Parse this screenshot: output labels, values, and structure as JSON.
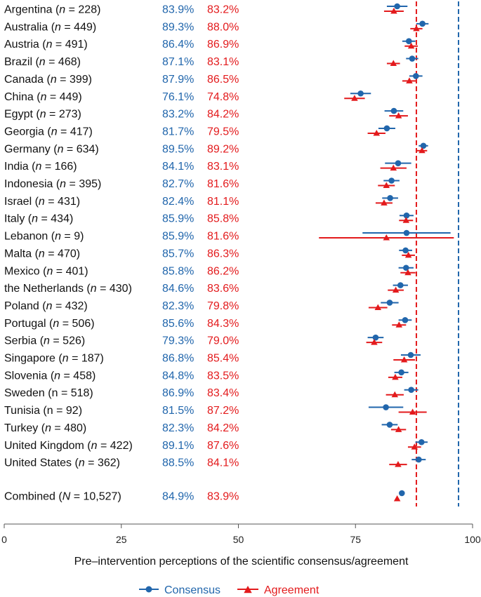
{
  "colors": {
    "consensus": "#2166ac",
    "agreement": "#e31a1c"
  },
  "chart_data": {
    "type": "forest",
    "title": "",
    "xlabel": "Pre–intervention perceptions of the scientific consensus/agreement",
    "xlim": [
      0,
      100
    ],
    "xticks": [
      0,
      25,
      50,
      75,
      100
    ],
    "reference_lines": [
      {
        "name": "Consensus",
        "value": 97,
        "style": "dashed"
      },
      {
        "name": "Agreement",
        "value": 88,
        "style": "dashed"
      }
    ],
    "legend": [
      {
        "name": "Consensus",
        "marker": "circle"
      },
      {
        "name": "Agreement",
        "marker": "triangle"
      }
    ],
    "rows": [
      {
        "country": "Argentina",
        "n_label": "n",
        "n": "228",
        "italic_n": true,
        "consensus_text": "83.9%",
        "agreement_text": "83.2%",
        "consensus": 83.9,
        "consensus_ci": [
          81.7,
          86.1
        ],
        "agreement": 83.2,
        "agreement_ci": [
          81.1,
          85.3
        ]
      },
      {
        "country": "Australia",
        "n_label": "n",
        "n": "449",
        "italic_n": true,
        "consensus_text": "89.3%",
        "agreement_text": "88.0%",
        "consensus": 89.3,
        "consensus_ci": [
          88.0,
          90.6
        ],
        "agreement": 88.0,
        "agreement_ci": [
          86.7,
          89.3
        ]
      },
      {
        "country": "Austria",
        "n_label": "n",
        "n": "491",
        "italic_n": true,
        "consensus_text": "86.4%",
        "agreement_text": "86.9%",
        "consensus": 86.4,
        "consensus_ci": [
          85.0,
          87.8
        ],
        "agreement": 86.9,
        "agreement_ci": [
          85.5,
          88.3
        ]
      },
      {
        "country": "Brazil",
        "n_label": "n",
        "n": "468",
        "italic_n": true,
        "consensus_text": "87.1%",
        "agreement_text": "83.1%",
        "consensus": 87.1,
        "consensus_ci": [
          85.8,
          88.4
        ],
        "agreement": 83.1,
        "agreement_ci": [
          81.7,
          84.5
        ]
      },
      {
        "country": "Canada",
        "n_label": "n",
        "n": "399",
        "italic_n": true,
        "consensus_text": "87.9%",
        "agreement_text": "86.5%",
        "consensus": 87.9,
        "consensus_ci": [
          86.5,
          89.3
        ],
        "agreement": 86.5,
        "agreement_ci": [
          85.0,
          88.0
        ]
      },
      {
        "country": "China",
        "n_label": "n",
        "n": "449",
        "italic_n": true,
        "consensus_text": "76.1%",
        "agreement_text": "74.8%",
        "consensus": 76.1,
        "consensus_ci": [
          73.9,
          78.3
        ],
        "agreement": 74.8,
        "agreement_ci": [
          72.6,
          77.0
        ]
      },
      {
        "country": "Egypt",
        "n_label": "n",
        "n": "273",
        "italic_n": true,
        "consensus_text": "83.2%",
        "agreement_text": "84.2%",
        "consensus": 83.2,
        "consensus_ci": [
          81.2,
          85.2
        ],
        "agreement": 84.2,
        "agreement_ci": [
          82.2,
          86.2
        ]
      },
      {
        "country": "Georgia",
        "n_label": "n",
        "n": "417",
        "italic_n": true,
        "consensus_text": "81.7%",
        "agreement_text": "79.5%",
        "consensus": 81.7,
        "consensus_ci": [
          79.9,
          83.5
        ],
        "agreement": 79.5,
        "agreement_ci": [
          77.6,
          81.4
        ]
      },
      {
        "country": "Germany",
        "n_label": "n",
        "n": "634",
        "italic_n": true,
        "consensus_text": "89.5%",
        "agreement_text": "89.2%",
        "consensus": 89.5,
        "consensus_ci": [
          88.5,
          90.5
        ],
        "agreement": 89.2,
        "agreement_ci": [
          88.1,
          90.3
        ]
      },
      {
        "country": "India",
        "n_label": "n",
        "n": "166",
        "italic_n": true,
        "consensus_text": "84.1%",
        "agreement_text": "83.1%",
        "consensus": 84.1,
        "consensus_ci": [
          81.3,
          86.9
        ],
        "agreement": 83.1,
        "agreement_ci": [
          80.3,
          85.9
        ]
      },
      {
        "country": "Indonesia",
        "n_label": "n",
        "n": "395",
        "italic_n": true,
        "consensus_text": "82.7%",
        "agreement_text": "81.6%",
        "consensus": 82.7,
        "consensus_ci": [
          81.0,
          84.4
        ],
        "agreement": 81.6,
        "agreement_ci": [
          79.8,
          83.4
        ]
      },
      {
        "country": "Israel",
        "n_label": "n",
        "n": "431",
        "italic_n": true,
        "consensus_text": "82.4%",
        "agreement_text": "81.1%",
        "consensus": 82.4,
        "consensus_ci": [
          80.7,
          84.1
        ],
        "agreement": 81.1,
        "agreement_ci": [
          79.3,
          82.9
        ]
      },
      {
        "country": "Italy",
        "n_label": "n",
        "n": "434",
        "italic_n": true,
        "consensus_text": "85.9%",
        "agreement_text": "85.8%",
        "consensus": 85.9,
        "consensus_ci": [
          84.4,
          87.4
        ],
        "agreement": 85.8,
        "agreement_ci": [
          84.3,
          87.3
        ]
      },
      {
        "country": "Lebanon",
        "n_label": "n",
        "n": "9",
        "italic_n": true,
        "consensus_text": "85.9%",
        "agreement_text": "81.6%",
        "consensus": 85.9,
        "consensus_ci": [
          76.5,
          95.3
        ],
        "agreement": 81.6,
        "agreement_ci": [
          67.2,
          96.0
        ]
      },
      {
        "country": "Malta",
        "n_label": "n",
        "n": "470",
        "italic_n": true,
        "consensus_text": "85.7%",
        "agreement_text": "86.3%",
        "consensus": 85.7,
        "consensus_ci": [
          84.3,
          87.1
        ],
        "agreement": 86.3,
        "agreement_ci": [
          84.9,
          87.7
        ]
      },
      {
        "country": "Mexico",
        "n_label": "n",
        "n": "401",
        "italic_n": true,
        "consensus_text": "85.8%",
        "agreement_text": "86.2%",
        "consensus": 85.8,
        "consensus_ci": [
          84.2,
          87.4
        ],
        "agreement": 86.2,
        "agreement_ci": [
          84.6,
          87.8
        ]
      },
      {
        "country": "the Netherlands",
        "n_label": "n",
        "n": "430",
        "italic_n": true,
        "consensus_text": "84.6%",
        "agreement_text": "83.6%",
        "consensus": 84.6,
        "consensus_ci": [
          83.0,
          86.2
        ],
        "agreement": 83.6,
        "agreement_ci": [
          81.9,
          85.3
        ]
      },
      {
        "country": "Poland",
        "n_label": "n",
        "n": "432",
        "italic_n": true,
        "consensus_text": "82.3%",
        "agreement_text": "79.8%",
        "consensus": 82.3,
        "consensus_ci": [
          80.4,
          84.2
        ],
        "agreement": 79.8,
        "agreement_ci": [
          77.8,
          81.8
        ]
      },
      {
        "country": "Portugal",
        "n_label": "n",
        "n": "506",
        "italic_n": true,
        "consensus_text": "85.6%",
        "agreement_text": "84.3%",
        "consensus": 85.6,
        "consensus_ci": [
          84.2,
          87.0
        ],
        "agreement": 84.3,
        "agreement_ci": [
          82.8,
          85.8
        ]
      },
      {
        "country": "Serbia",
        "n_label": "n",
        "n": "526",
        "italic_n": true,
        "consensus_text": "79.3%",
        "agreement_text": "79.0%",
        "consensus": 79.3,
        "consensus_ci": [
          77.6,
          81.0
        ],
        "agreement": 79.0,
        "agreement_ci": [
          77.3,
          80.7
        ]
      },
      {
        "country": "Singapore",
        "n_label": "n",
        "n": "187",
        "italic_n": true,
        "consensus_text": "86.8%",
        "agreement_text": "85.4%",
        "consensus": 86.8,
        "consensus_ci": [
          84.7,
          88.9
        ],
        "agreement": 85.4,
        "agreement_ci": [
          83.1,
          87.7
        ]
      },
      {
        "country": "Slovenia",
        "n_label": "n",
        "n": "458",
        "italic_n": true,
        "consensus_text": "84.8%",
        "agreement_text": "83.5%",
        "consensus": 84.8,
        "consensus_ci": [
          83.3,
          86.3
        ],
        "agreement": 83.5,
        "agreement_ci": [
          82.0,
          85.0
        ]
      },
      {
        "country": "Sweden",
        "n_label": "n",
        "n": "518",
        "italic_n": false,
        "consensus_text": "86.9%",
        "agreement_text": "83.4%",
        "consensus": 86.9,
        "consensus_ci": [
          85.4,
          88.4
        ],
        "agreement": 83.4,
        "agreement_ci": [
          81.5,
          85.3
        ]
      },
      {
        "country": "Tunisia",
        "n_label": "n",
        "n": "92",
        "italic_n": false,
        "consensus_text": "81.5%",
        "agreement_text": "87.2%",
        "consensus": 81.5,
        "consensus_ci": [
          77.8,
          85.2
        ],
        "agreement": 87.2,
        "agreement_ci": [
          84.2,
          90.2
        ]
      },
      {
        "country": "Turkey",
        "n_label": "n",
        "n": "480",
        "italic_n": true,
        "consensus_text": "82.3%",
        "agreement_text": "84.2%",
        "consensus": 82.3,
        "consensus_ci": [
          80.6,
          84.0
        ],
        "agreement": 84.2,
        "agreement_ci": [
          82.6,
          85.8
        ]
      },
      {
        "country": "United Kingdom",
        "n_label": "n",
        "n": "422",
        "italic_n": true,
        "consensus_text": "89.1%",
        "agreement_text": "87.6%",
        "consensus": 89.1,
        "consensus_ci": [
          87.8,
          90.4
        ],
        "agreement": 87.6,
        "agreement_ci": [
          86.2,
          89.0
        ]
      },
      {
        "country": "United States",
        "n_label": "n",
        "n": "362",
        "italic_n": true,
        "consensus_text": "88.5%",
        "agreement_text": "84.1%",
        "consensus": 88.5,
        "consensus_ci": [
          87.0,
          90.0
        ],
        "agreement": 84.1,
        "agreement_ci": [
          82.2,
          86.0
        ]
      }
    ],
    "combined": {
      "country": "Combined",
      "n_label": "N",
      "n": "10,527",
      "italic_n": true,
      "consensus_text": "84.9%",
      "agreement_text": "83.9%",
      "consensus": 84.9,
      "agreement": 83.9
    }
  }
}
